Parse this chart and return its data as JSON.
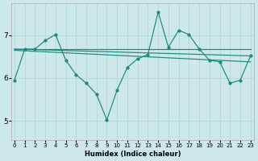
{
  "xlabel": "Humidex (Indice chaleur)",
  "background_color": "#cce8e8",
  "line_color": "#1a8a7a",
  "grid_color": "#b0d4d4",
  "xlim": [
    -0.3,
    23.3
  ],
  "ylim": [
    4.55,
    7.75
  ],
  "yticks": [
    5,
    6,
    7
  ],
  "xticks": [
    0,
    1,
    2,
    3,
    4,
    5,
    6,
    7,
    8,
    9,
    10,
    11,
    12,
    13,
    14,
    15,
    16,
    17,
    18,
    19,
    20,
    21,
    22,
    23
  ],
  "volatile_line": {
    "x": [
      0,
      1,
      2,
      3,
      4,
      5,
      6,
      7,
      8,
      9,
      10,
      11,
      12,
      13,
      14,
      15,
      16,
      17,
      18,
      19,
      20,
      21,
      22,
      23
    ],
    "y": [
      5.95,
      6.68,
      6.68,
      6.88,
      7.02,
      6.42,
      6.08,
      5.88,
      5.62,
      5.02,
      5.72,
      6.25,
      6.45,
      6.55,
      7.55,
      6.72,
      7.12,
      7.02,
      6.68,
      6.42,
      6.38,
      5.88,
      5.95,
      6.52
    ]
  },
  "smooth_lines": [
    {
      "x": [
        0,
        23
      ],
      "y": [
        6.68,
        6.68
      ]
    },
    {
      "x": [
        0,
        23
      ],
      "y": [
        6.68,
        6.52
      ]
    },
    {
      "x": [
        0,
        23
      ],
      "y": [
        6.65,
        6.38
      ]
    }
  ]
}
